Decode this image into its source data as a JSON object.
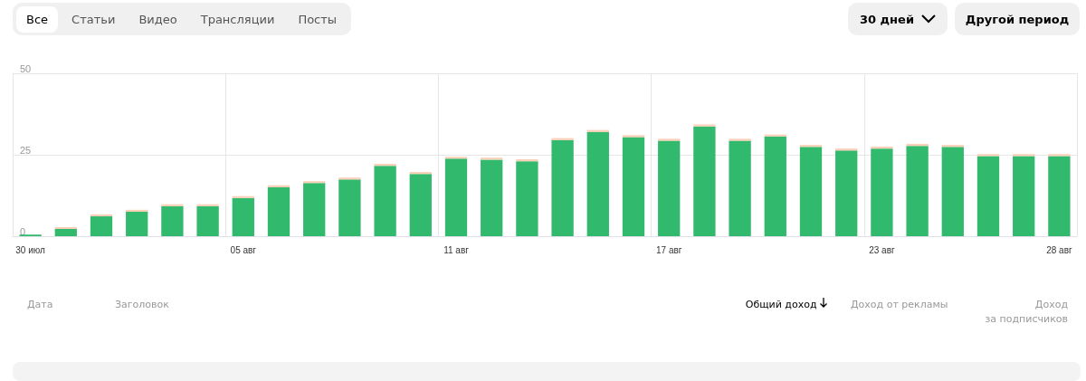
{
  "chart_data": {
    "type": "bar",
    "stacked": true,
    "categories": [
      "30 июл",
      null,
      null,
      null,
      null,
      null,
      "05 авг",
      null,
      null,
      null,
      null,
      null,
      "11 авг",
      null,
      null,
      null,
      null,
      null,
      "17 авг",
      null,
      null,
      null,
      null,
      null,
      "23 авг",
      null,
      null,
      null,
      null,
      "28 авг"
    ],
    "series": [
      {
        "color": "#31b96e",
        "values": [
          0.5,
          2.2,
          6.1,
          7.5,
          9.2,
          9.2,
          11.7,
          15.0,
          16.3,
          17.4,
          21.6,
          19.1,
          23.8,
          23.5,
          23.0,
          29.5,
          32.0,
          30.4,
          29.3,
          33.7,
          29.3,
          30.6,
          27.4,
          26.3,
          26.9,
          27.7,
          27.4,
          24.6,
          24.6,
          24.6
        ]
      },
      {
        "color": "#f9cfb5",
        "values": [
          0,
          0.6,
          0.6,
          0.6,
          0.6,
          0.6,
          0.6,
          0.6,
          0.6,
          0.6,
          0.6,
          0.6,
          0.6,
          0.6,
          0.6,
          0.6,
          0.6,
          0.6,
          0.6,
          0.6,
          0.6,
          0.6,
          0.6,
          0.6,
          0.6,
          0.6,
          0.6,
          0.6,
          0.6,
          0.6
        ]
      }
    ],
    "ylim": [
      0,
      50
    ],
    "yticks": [
      0,
      25,
      50
    ],
    "grid": true,
    "annotations": [
      "Все",
      "Статьи",
      "Видео",
      "Трансляции",
      "Посты",
      "30 дней",
      "Другой период",
      "Дата",
      "Заголовок",
      "Общий доход",
      "Доход от рекламы",
      "Доход\nза подписчиков"
    ]
  }
}
